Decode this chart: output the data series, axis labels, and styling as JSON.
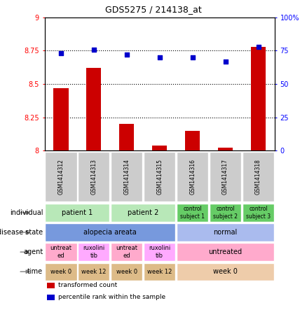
{
  "title": "GDS5275 / 214138_at",
  "samples": [
    "GSM1414312",
    "GSM1414313",
    "GSM1414314",
    "GSM1414315",
    "GSM1414316",
    "GSM1414317",
    "GSM1414318"
  ],
  "bar_values": [
    8.47,
    8.62,
    8.2,
    8.04,
    8.15,
    8.02,
    8.78
  ],
  "dot_values": [
    73,
    76,
    72,
    70,
    70,
    67,
    78
  ],
  "ylim_left": [
    8.0,
    9.0
  ],
  "ylim_right": [
    0,
    100
  ],
  "yticks_left": [
    8.0,
    8.25,
    8.5,
    8.75,
    9.0
  ],
  "yticks_right": [
    0,
    25,
    50,
    75,
    100
  ],
  "ytick_labels_left": [
    "8",
    "8.25",
    "8.5",
    "8.75",
    "9"
  ],
  "ytick_labels_right": [
    "0",
    "25",
    "50",
    "75",
    "100%"
  ],
  "hlines": [
    8.25,
    8.5,
    8.75
  ],
  "bar_color": "#cc0000",
  "dot_color": "#0000cc",
  "sample_label_bg": "#cccccc",
  "metadata_rows": [
    {
      "label": "individual",
      "cells": [
        {
          "text": "patient 1",
          "span": 2,
          "color": "#b8e8b8",
          "fontsize": 7
        },
        {
          "text": "patient 2",
          "span": 2,
          "color": "#b8e8b8",
          "fontsize": 7
        },
        {
          "text": "control\nsubject 1",
          "span": 1,
          "color": "#66cc66",
          "fontsize": 5.5
        },
        {
          "text": "control\nsubject 2",
          "span": 1,
          "color": "#66cc66",
          "fontsize": 5.5
        },
        {
          "text": "control\nsubject 3",
          "span": 1,
          "color": "#66cc66",
          "fontsize": 5.5
        }
      ]
    },
    {
      "label": "disease state",
      "cells": [
        {
          "text": "alopecia areata",
          "span": 4,
          "color": "#7799dd",
          "fontsize": 7
        },
        {
          "text": "normal",
          "span": 3,
          "color": "#aabbee",
          "fontsize": 7
        }
      ]
    },
    {
      "label": "agent",
      "cells": [
        {
          "text": "untreat\ned",
          "span": 1,
          "color": "#ffaacc",
          "fontsize": 6
        },
        {
          "text": "ruxolini\ntib",
          "span": 1,
          "color": "#ffaaff",
          "fontsize": 6
        },
        {
          "text": "untreat\ned",
          "span": 1,
          "color": "#ffaacc",
          "fontsize": 6
        },
        {
          "text": "ruxolini\ntib",
          "span": 1,
          "color": "#ffaaff",
          "fontsize": 6
        },
        {
          "text": "untreated",
          "span": 3,
          "color": "#ffaacc",
          "fontsize": 7
        }
      ]
    },
    {
      "label": "time",
      "cells": [
        {
          "text": "week 0",
          "span": 1,
          "color": "#ddbb88",
          "fontsize": 6
        },
        {
          "text": "week 12",
          "span": 1,
          "color": "#ddbb88",
          "fontsize": 6
        },
        {
          "text": "week 0",
          "span": 1,
          "color": "#ddbb88",
          "fontsize": 6
        },
        {
          "text": "week 12",
          "span": 1,
          "color": "#ddbb88",
          "fontsize": 6
        },
        {
          "text": "week 0",
          "span": 3,
          "color": "#eeccaa",
          "fontsize": 7
        }
      ]
    }
  ],
  "legend_items": [
    {
      "color": "#cc0000",
      "label": "transformed count"
    },
    {
      "color": "#0000cc",
      "label": "percentile rank within the sample"
    }
  ]
}
